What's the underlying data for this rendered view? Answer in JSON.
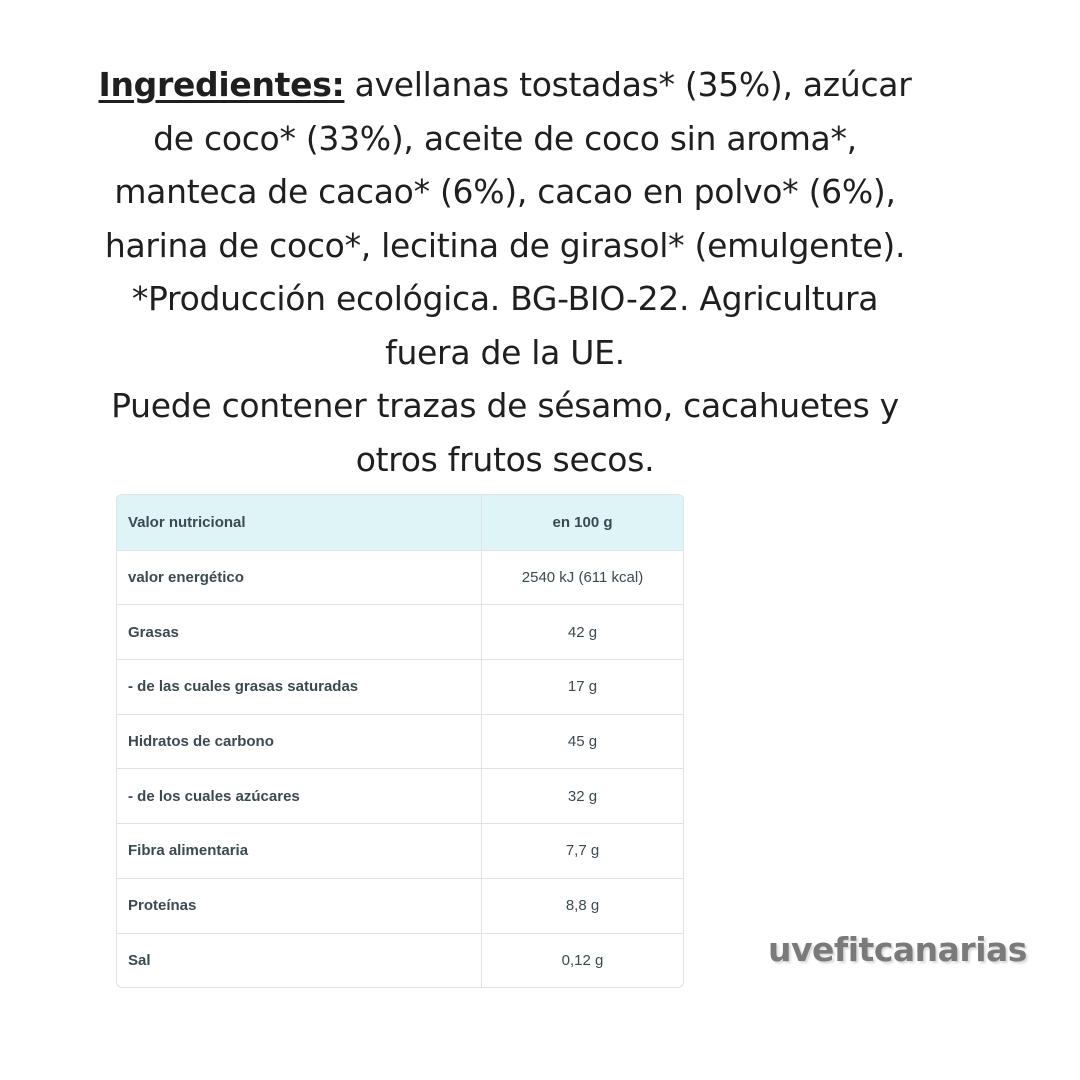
{
  "ingredients": {
    "label": "Ingredientes:",
    "lines": [
      " avellanas tostadas* (35%), azúcar",
      "de coco* (33%), aceite de coco sin aroma*,",
      "manteca de cacao* (6%), cacao en polvo* (6%),",
      "harina de coco*, lecitina de girasol* (emulgente).",
      "*Producción ecológica. BG-BIO-22. Agricultura",
      "fuera de la UE.",
      "Puede contener trazas de sésamo, cacahuetes y",
      "otros frutos secos."
    ]
  },
  "nutrition_table": {
    "header": {
      "label": "Valor nutricional",
      "value": "en 100 g"
    },
    "rows": [
      {
        "label": "valor energético",
        "value": "2540 kJ (611 kcal)"
      },
      {
        "label": "Grasas",
        "value": "42 g"
      },
      {
        "label": "- de las cuales grasas saturadas",
        "value": "17 g"
      },
      {
        "label": "Hidratos de carbono",
        "value": "45 g"
      },
      {
        "label": "- de los cuales azúcares",
        "value": "32 g"
      },
      {
        "label": "Fibra alimentaria",
        "value": "7,7 g"
      },
      {
        "label": "Proteínas",
        "value": "8,8 g"
      },
      {
        "label": "Sal",
        "value": "0,12 g"
      }
    ]
  },
  "brand": "uvefitcanarias",
  "colors": {
    "header_bg": "#dff4f6",
    "border": "#dde3e6",
    "brand_text": "#7a7a7a"
  }
}
